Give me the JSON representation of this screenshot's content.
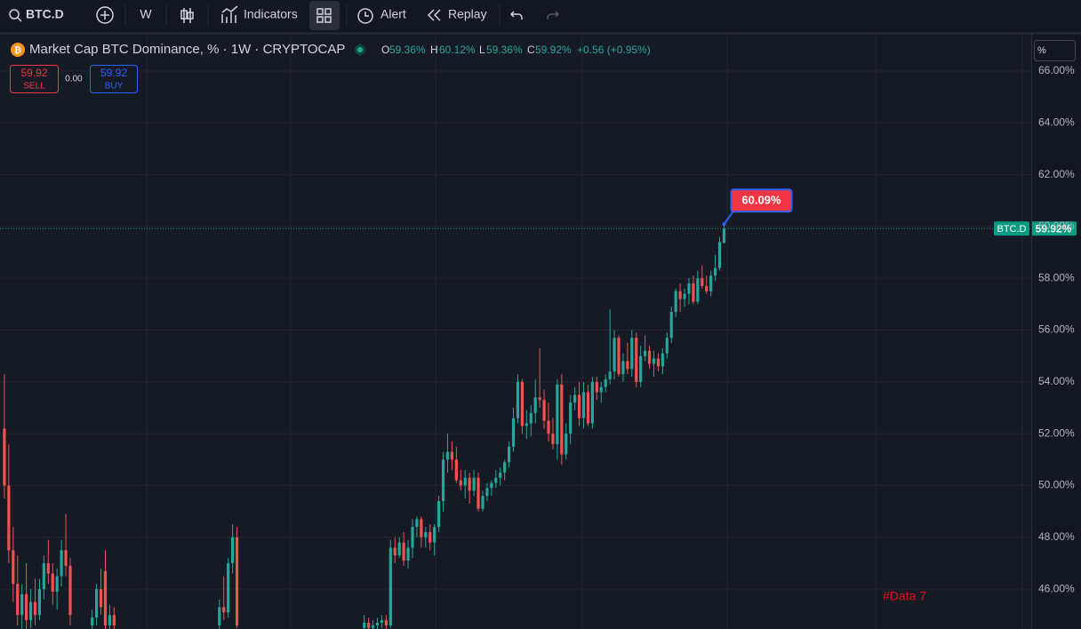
{
  "toolbar": {
    "symbol": "BTC.D",
    "interval": "W",
    "indicators": "Indicators",
    "alert": "Alert",
    "replay": "Replay"
  },
  "legend": {
    "title": "Market Cap BTC Dominance, % · 1W · CRYPTOCAP",
    "o_label": "O",
    "o": "59.36%",
    "h_label": "H",
    "h": "60.12%",
    "l_label": "L",
    "l": "59.36%",
    "c_label": "C",
    "c": "59.92%",
    "change": "+0.56 (+0.95%)"
  },
  "trade": {
    "sell_price": "59.92",
    "sell": "SELL",
    "spread": "0.00",
    "buy_price": "59.92",
    "buy": "BUY"
  },
  "scale_unit": "%",
  "chart_data": {
    "type": "candlestick",
    "up_color": "#26a69a",
    "down_color": "#ef5350",
    "grid": true,
    "x": [
      0,
      1,
      2,
      3,
      4,
      5,
      6,
      7,
      8,
      9,
      10,
      11,
      12,
      13,
      14,
      15,
      20,
      21,
      22,
      23,
      24,
      25,
      49,
      50,
      51,
      52,
      53,
      82,
      83,
      84,
      85,
      86,
      87,
      88,
      89,
      90,
      91,
      92,
      93,
      94,
      95,
      96,
      97,
      98,
      99,
      100,
      101,
      102,
      103,
      104,
      105,
      106,
      107,
      108,
      109,
      110,
      111,
      112,
      113,
      114,
      115,
      116,
      117,
      118,
      119,
      120,
      121,
      122,
      123,
      124,
      125,
      126,
      127,
      128,
      129,
      130,
      131,
      132,
      133,
      134,
      135,
      136,
      137,
      138,
      139,
      140,
      141,
      142,
      143,
      144,
      145,
      146,
      147,
      148,
      149,
      150,
      151,
      152,
      153,
      154,
      155,
      156,
      157,
      158,
      159,
      160,
      161,
      162,
      163,
      164
    ],
    "open": [
      52.2,
      50,
      47.5,
      46.2,
      45,
      45.8,
      44.8,
      45.5,
      45,
      46,
      47,
      46.6,
      45.9,
      46.5,
      47.5,
      46.9,
      44.6,
      44.9,
      46,
      46.7,
      44.6,
      45,
      44.6,
      45.3,
      45.1,
      47,
      48,
      44.5,
      44.7,
      44.5,
      44.6,
      44.7,
      44.8,
      44.6,
      47.6,
      47.3,
      47.8,
      47.1,
      47.6,
      48.4,
      48.7,
      48,
      48.2,
      47.8,
      48.4,
      49.4,
      51,
      51.3,
      51,
      50.2,
      50,
      50.3,
      49.8,
      50.3,
      49.1,
      49.6,
      49.9,
      50.1,
      50.3,
      50.5,
      50.9,
      51.5,
      52.6,
      54,
      52.3,
      52.4,
      52.8,
      53.4,
      53.3,
      52.5,
      52,
      51.6,
      53.9,
      51.2,
      52,
      53.2,
      53.5,
      52.6,
      53.6,
      52.4,
      54,
      53.6,
      53.8,
      54.1,
      54.4,
      55.7,
      54.3,
      54.8,
      54.5,
      55.7,
      54,
      55,
      55.2,
      54.7,
      54.9,
      54.6,
      55.1,
      55.7,
      56.7,
      57.5,
      57.2,
      57.4,
      57.8,
      57.1,
      58,
      57.7,
      57.5,
      58.1,
      58.4,
      59.36
    ],
    "high": [
      54.3,
      51.6,
      48.4,
      47.3,
      46.2,
      47,
      46,
      46.4,
      46.4,
      47.3,
      47.9,
      47,
      46.8,
      47.9,
      48.9,
      47.2,
      45.2,
      46.2,
      46.8,
      47.5,
      45.4,
      45.3,
      45.6,
      46.5,
      47.2,
      48.5,
      48.4,
      45,
      44.9,
      44.8,
      44.9,
      45,
      45,
      47.9,
      48,
      48,
      48.2,
      47.9,
      48.7,
      48.8,
      48.8,
      48.4,
      48.5,
      48.5,
      49.6,
      51.3,
      52,
      51.7,
      51.5,
      50.6,
      50.6,
      50.5,
      50.6,
      50.5,
      49.8,
      50.1,
      50.2,
      50.6,
      50.7,
      51,
      51.7,
      53,
      54.3,
      54.1,
      52.9,
      53.1,
      54.1,
      55.3,
      53.7,
      53.2,
      52.6,
      54.1,
      54.3,
      52.4,
      53.5,
      53.8,
      54,
      54,
      53.9,
      54.2,
      54.2,
      54,
      54.3,
      56.8,
      56,
      55.8,
      55.1,
      55.5,
      56,
      55.9,
      55.4,
      55.8,
      55.4,
      55.2,
      55.1,
      55.3,
      55.9,
      56.9,
      57.6,
      57.8,
      57.6,
      58,
      58.1,
      58.3,
      58.5,
      58.1,
      58.3,
      58.9,
      59.6,
      60.12
    ],
    "low": [
      49.5,
      47,
      45.5,
      44.6,
      44.4,
      44.4,
      44.5,
      44.6,
      44.8,
      45.6,
      46.2,
      45.4,
      45.2,
      46.1,
      46.5,
      44.6,
      44.4,
      44.6,
      45,
      44.4,
      44.4,
      44.4,
      44.4,
      44.8,
      44.9,
      46.6,
      44.5,
      44.4,
      44.4,
      44.4,
      44.4,
      44.5,
      44.4,
      44.5,
      47,
      47.2,
      46.9,
      46.8,
      47.2,
      48,
      47.6,
      47.6,
      47.5,
      47.3,
      48.2,
      49,
      50.5,
      50.6,
      50.1,
      49.8,
      49.5,
      49.3,
      49.6,
      49,
      49,
      49.4,
      49.6,
      49.9,
      50,
      50.2,
      50.7,
      51.3,
      52.4,
      52,
      51.8,
      51.9,
      52.4,
      53,
      52.2,
      51.7,
      51.4,
      51,
      50.8,
      51,
      51.6,
      52.9,
      52.3,
      52.2,
      52.3,
      52.2,
      53.3,
      53.2,
      53.6,
      53.9,
      54.1,
      54.2,
      54,
      54.3,
      54.2,
      53.8,
      53.8,
      54.8,
      54.5,
      54.2,
      54.4,
      54.3,
      54.9,
      55.5,
      56.5,
      56.7,
      56.9,
      57,
      57,
      57,
      57.6,
      57.4,
      57.3,
      57.9,
      58.3,
      59.36
    ],
    "close": [
      50,
      47.5,
      46.2,
      45,
      45.8,
      44.8,
      45.5,
      45,
      46,
      47,
      46.6,
      45.9,
      46.5,
      47.5,
      46.9,
      45,
      44.9,
      46,
      45.3,
      44.6,
      45,
      44.6,
      45.3,
      45.1,
      47,
      48,
      44.6,
      44.7,
      44.5,
      44.6,
      44.7,
      44.8,
      44.6,
      47.6,
      47.3,
      47.8,
      47.1,
      47.6,
      48.4,
      48.7,
      48,
      48.2,
      47.8,
      48.4,
      49.4,
      51,
      51.3,
      51,
      50.2,
      50,
      50.3,
      49.8,
      50.3,
      49.1,
      49.6,
      49.9,
      50.1,
      50.3,
      50.5,
      50.9,
      51.5,
      52.6,
      54,
      52.3,
      52.4,
      52.8,
      53.4,
      53.3,
      52.5,
      52,
      51.6,
      53.9,
      51.2,
      52,
      53.2,
      53.5,
      52.6,
      53.6,
      52.4,
      54,
      53.6,
      53.8,
      54.1,
      54.4,
      55.7,
      54.3,
      54.8,
      54.5,
      55.7,
      54,
      55,
      55.2,
      54.7,
      54.9,
      54.6,
      55.1,
      55.7,
      56.7,
      57.5,
      57.2,
      57.4,
      57.8,
      57.1,
      58,
      57.7,
      57.5,
      58.1,
      58.4,
      59.4,
      59.92
    ],
    "xlim": [
      -1,
      234
    ],
    "ylim": [
      44.46,
      67.44
    ],
    "yticks": [
      {
        "value": 46,
        "label": "46.00%"
      },
      {
        "value": 48,
        "label": "48.00%"
      },
      {
        "value": 50,
        "label": "50.00%"
      },
      {
        "value": 52,
        "label": "52.00%"
      },
      {
        "value": 54,
        "label": "54.00%"
      },
      {
        "value": 56,
        "label": "56.00%"
      },
      {
        "value": 58,
        "label": "58.00%"
      },
      {
        "value": 60,
        "label": "60.00%"
      },
      {
        "value": 62,
        "label": "62.00%"
      },
      {
        "value": 64,
        "label": "64.00%"
      },
      {
        "value": 66,
        "label": "66.00%"
      }
    ],
    "price_line": {
      "name": "BTC.D",
      "value": 59.92,
      "label": "59.92%",
      "color": "#089981"
    },
    "annotation": {
      "value": 60.09,
      "label": "60.09%"
    },
    "watermark": "#Data 7"
  }
}
